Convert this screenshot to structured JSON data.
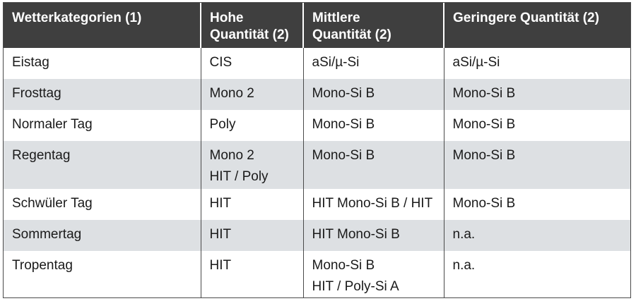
{
  "table": {
    "headers": [
      "Wetterkategorien (1)",
      "Hohe\nQuantität (2)",
      "Mittlere\nQuantität (2)",
      "Geringere Quantität (2)"
    ],
    "rows": [
      [
        "Eistag",
        "CIS",
        "aSi/µ-Si",
        "aSi/µ-Si"
      ],
      [
        "Frosttag",
        "Mono 2",
        "Mono-Si B",
        "Mono-Si B"
      ],
      [
        "Normaler Tag",
        "Poly",
        "Mono-Si B",
        "Mono-Si B"
      ],
      [
        "Regentag",
        "Mono 2\nHIT / Poly",
        "Mono-Si B",
        "Mono-Si B"
      ],
      [
        "Schwüler Tag",
        "HIT",
        "HIT Mono-Si B / HIT",
        "Mono-Si B"
      ],
      [
        "Sommertag",
        "HIT",
        "HIT Mono-Si B",
        "n.a."
      ],
      [
        "Tropentag",
        "HIT",
        "Mono-Si B\nHIT / Poly-Si A",
        "n.a."
      ]
    ]
  },
  "colors": {
    "header_bg": "#3f3f3f",
    "header_text": "#ffffff",
    "row_alt_bg": "#dde0e3",
    "row_bg": "#ffffff",
    "border": "#4a4a4a"
  }
}
